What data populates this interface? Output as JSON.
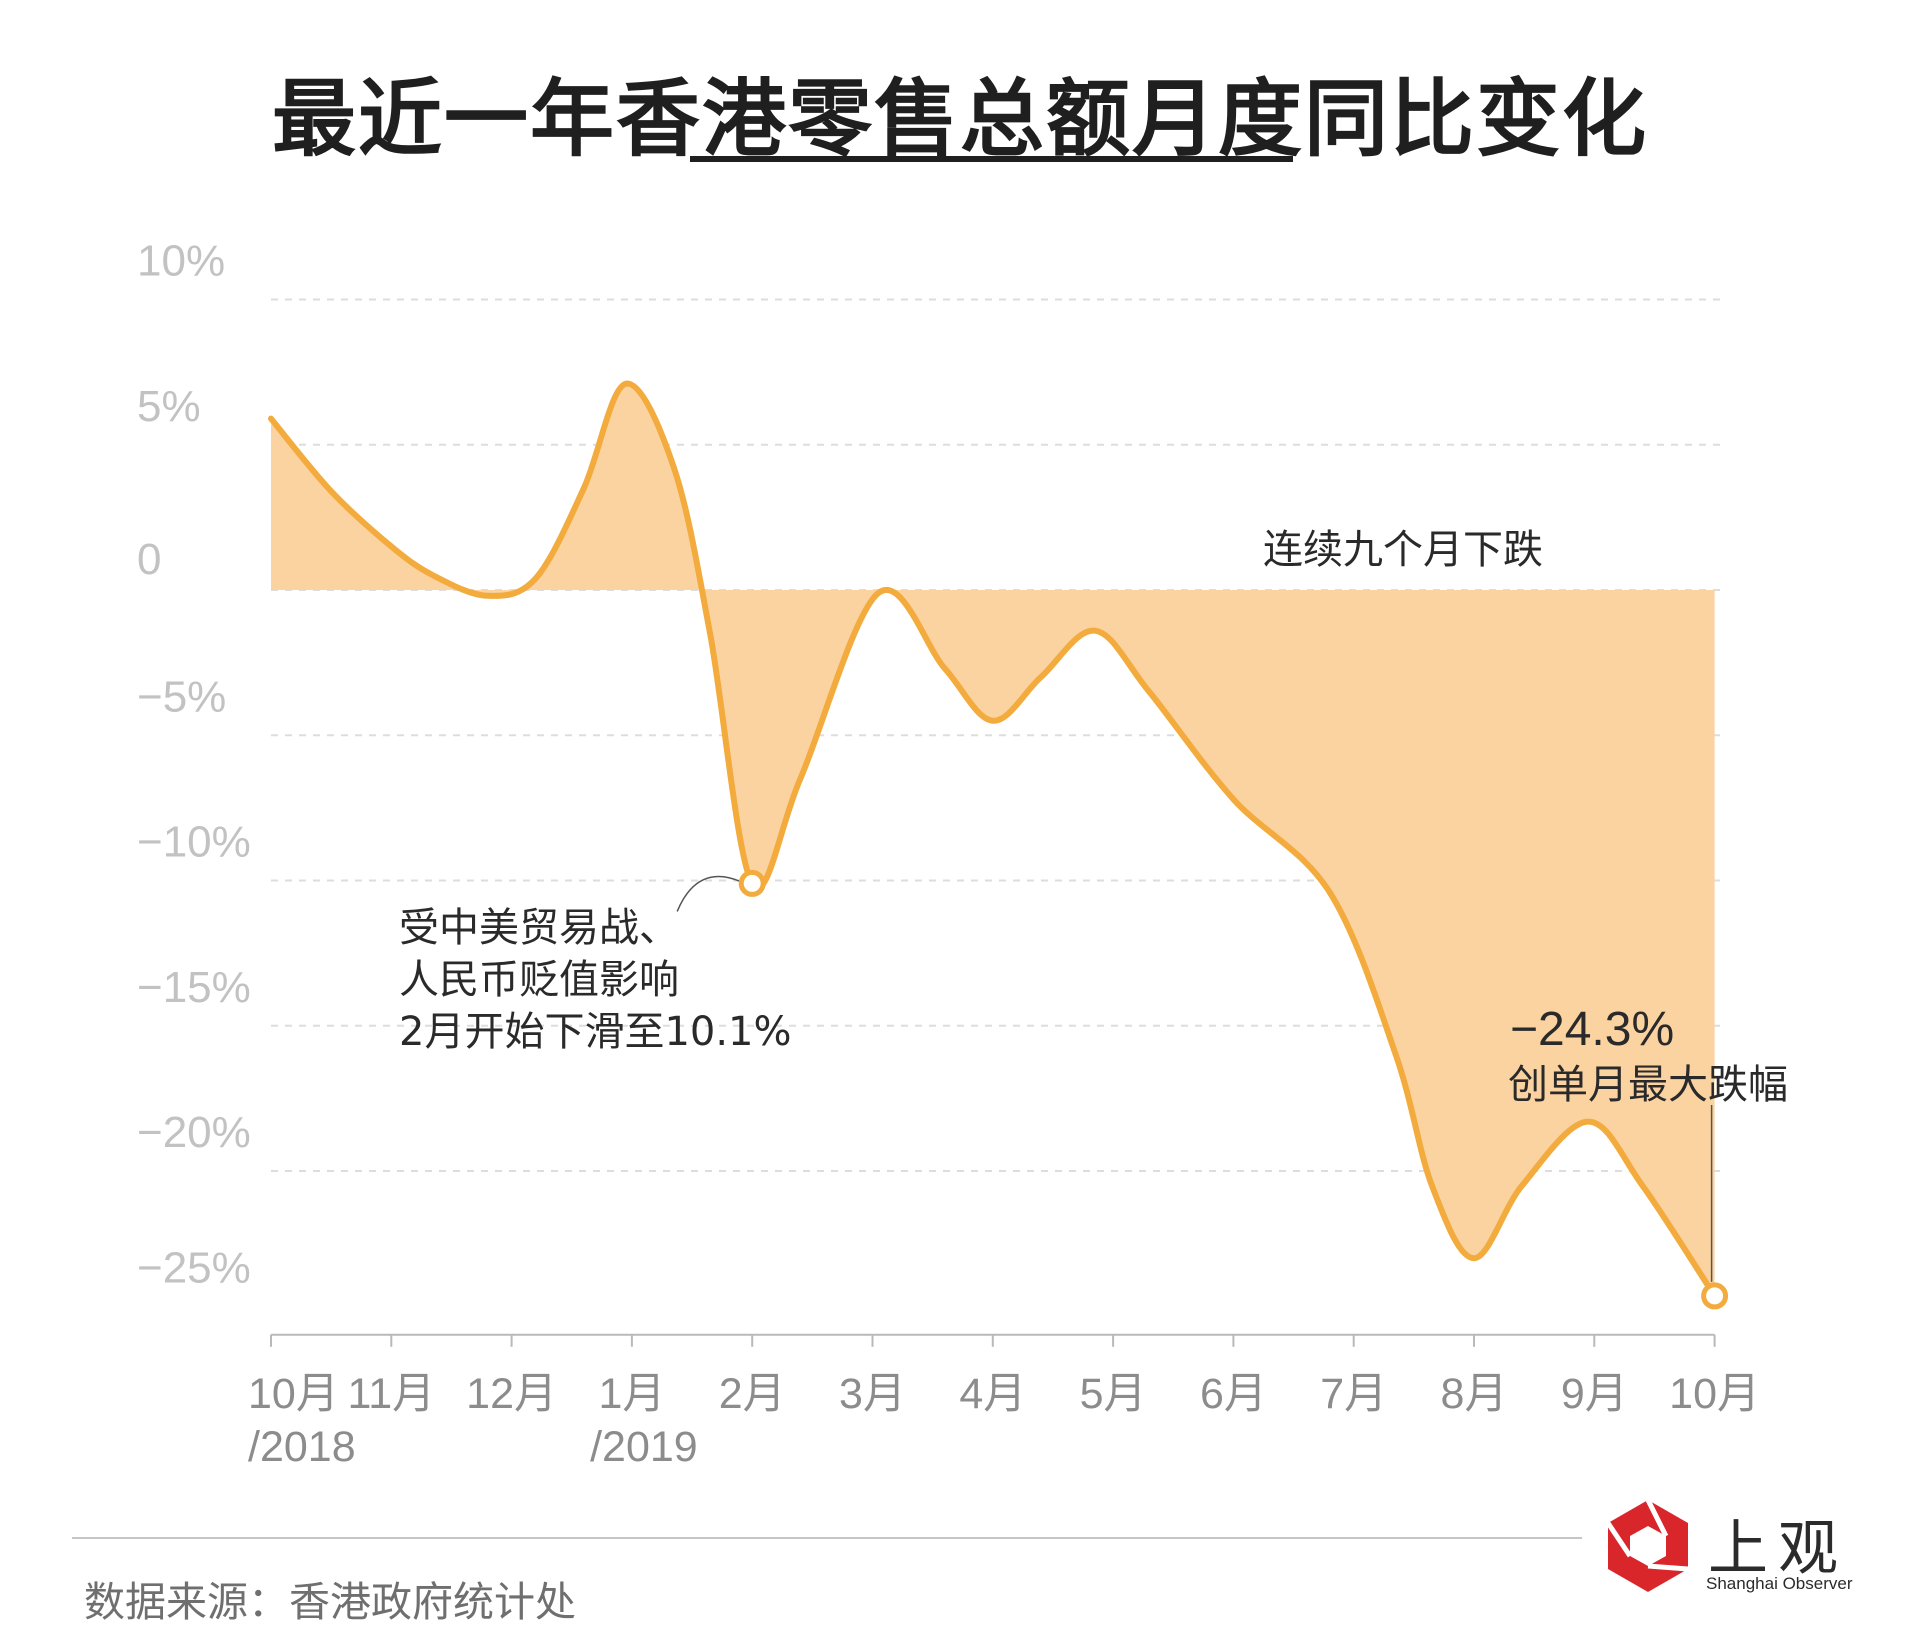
{
  "title": "最近一年香港零售总额月度同比变化",
  "source": "数据来源：香港政府统计处",
  "logo": {
    "cn": "上观",
    "en": "Shanghai Observer",
    "icon": "shanghai-observer-logo-icon"
  },
  "colors": {
    "line": "#f2ab3c",
    "fill": "#fbd3a1",
    "grid": "#dddddd",
    "text": "#2a2a2a",
    "axis": "#c2c2c2",
    "logo_red": "#d9262b"
  },
  "chart_data": {
    "type": "area",
    "title": "最近一年香港零售总额月度同比变化",
    "x": [
      "10月/2018",
      "11月",
      "12月",
      "1月/2019",
      "2月",
      "3月",
      "4月",
      "5月",
      "6月",
      "7月",
      "8月",
      "9月",
      "10月"
    ],
    "x_tick_labels": [
      {
        "line1": "10月",
        "line2": "/2018"
      },
      {
        "line1": "11月",
        "line2": ""
      },
      {
        "line1": "12月",
        "line2": ""
      },
      {
        "line1": "1月",
        "line2": "/2019"
      },
      {
        "line1": "2月",
        "line2": ""
      },
      {
        "line1": "3月",
        "line2": ""
      },
      {
        "line1": "4月",
        "line2": ""
      },
      {
        "line1": "5月",
        "line2": ""
      },
      {
        "line1": "6月",
        "line2": ""
      },
      {
        "line1": "7月",
        "line2": ""
      },
      {
        "line1": "8月",
        "line2": ""
      },
      {
        "line1": "9月",
        "line2": ""
      },
      {
        "line1": "10月",
        "line2": ""
      }
    ],
    "y_tick_labels": [
      "10%",
      "5%",
      "0",
      "−5%",
      "−10%",
      "−15%",
      "−20%",
      "−25%"
    ],
    "y_ticks": [
      10,
      5,
      0,
      -5,
      -10,
      -15,
      -20,
      -25
    ],
    "ylim": [
      -25.5,
      10
    ],
    "unit": "%",
    "grid": true,
    "curve_points": [
      [
        0,
        5.9
      ],
      [
        0.5,
        3.4
      ],
      [
        1,
        1.5
      ],
      [
        1.35,
        0.5
      ],
      [
        1.8,
        -0.2
      ],
      [
        2.2,
        0.4
      ],
      [
        2.6,
        3.5
      ],
      [
        2.95,
        7.1
      ],
      [
        3.35,
        4.2
      ],
      [
        3.65,
        -1.5
      ],
      [
        4,
        -10.1
      ],
      [
        4.4,
        -6.5
      ],
      [
        5.05,
        -0.1
      ],
      [
        5.6,
        -2.7
      ],
      [
        6,
        -4.5
      ],
      [
        6.4,
        -3.0
      ],
      [
        6.85,
        -1.4
      ],
      [
        7.3,
        -3.5
      ],
      [
        8,
        -7.2
      ],
      [
        8.8,
        -10.4
      ],
      [
        9.35,
        -16.0
      ],
      [
        9.65,
        -20.5
      ],
      [
        10,
        -23.0
      ],
      [
        10.4,
        -20.5
      ],
      [
        10.95,
        -18.3
      ],
      [
        11.4,
        -20.5
      ],
      [
        12,
        -24.3
      ]
    ],
    "annotations": [
      {
        "id": "feb",
        "x": 4,
        "y": -10.1,
        "lines": [
          "受中美贸易战、",
          "人民币贬值影响",
          "2月开始下滑至10.1%"
        ]
      },
      {
        "id": "oct",
        "x": 12,
        "y": -24.3,
        "lines": [
          "−24.3%",
          "创单月最大跌幅"
        ]
      },
      {
        "id": "nine",
        "lines": [
          "连续九个月下跌"
        ]
      }
    ]
  }
}
